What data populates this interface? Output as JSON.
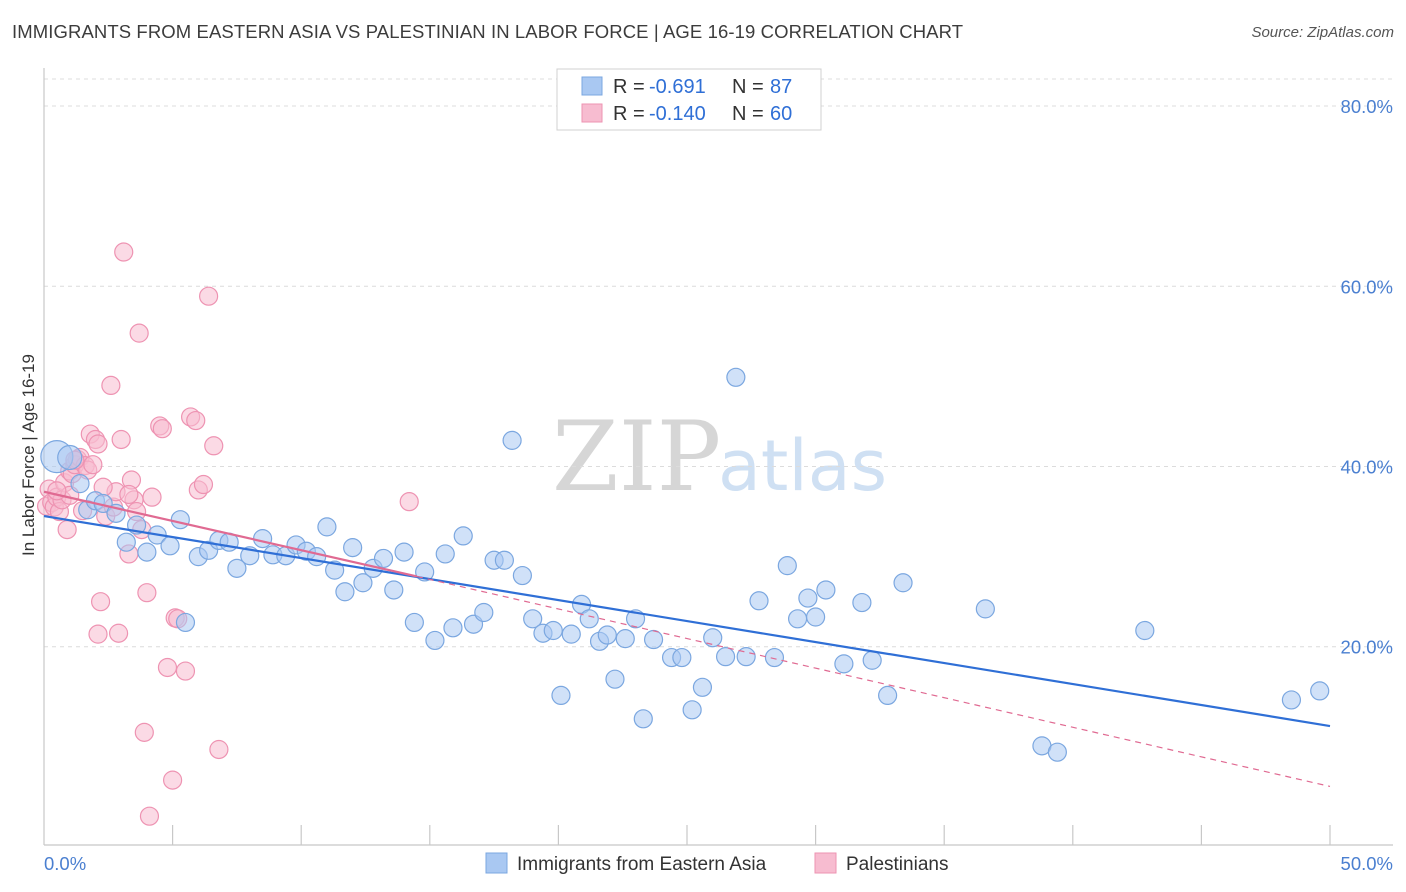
{
  "title": "IMMIGRANTS FROM EASTERN ASIA VS PALESTINIAN IN LABOR FORCE | AGE 16-19 CORRELATION CHART",
  "source": "Source: ZipAtlas.com",
  "watermark": {
    "zip": "ZIP",
    "atlas": "atlas"
  },
  "colors": {
    "blue_fill": "#a9c8f2",
    "blue_stroke": "#7ba7e0",
    "blue_line": "#2f6fd6",
    "pink_fill": "#f7bcd0",
    "pink_stroke": "#ee93b2",
    "pink_line": "#e06a92",
    "grid": "#dcdcdc",
    "tick_text": "#4a7fd0"
  },
  "legend": {
    "rows": [
      {
        "r_label": "R = ",
        "r_value": "-0.691",
        "n_label": "N = ",
        "n_value": "87"
      },
      {
        "r_label": "R = ",
        "r_value": "-0.140",
        "n_label": "N = ",
        "n_value": "60"
      }
    ]
  },
  "chart_data": {
    "type": "scatter",
    "title": "IMMIGRANTS FROM EASTERN ASIA VS PALESTINIAN IN LABOR FORCE | AGE 16-19 CORRELATION CHART",
    "xlabel": "",
    "ylabel": "In Labor Force | Age 16-19",
    "xlim": [
      0,
      50
    ],
    "ylim": [
      -2,
      84
    ],
    "x_tick_labels": [
      "0.0%",
      "50.0%"
    ],
    "y_ticks": [
      20,
      40,
      60,
      80
    ],
    "y_tick_labels": [
      "20.0%",
      "40.0%",
      "60.0%",
      "80.0%"
    ],
    "grid": true,
    "series": [
      {
        "name": "Immigrants from Eastern Asia",
        "r": -0.691,
        "n": 87,
        "trend": {
          "x0": 0,
          "y0": 34.5,
          "x1": 50,
          "y1": 11.2
        },
        "points": [
          [
            0.5,
            41.1
          ],
          [
            1.0,
            41.0
          ],
          [
            1.4,
            38.1
          ],
          [
            1.7,
            35.2
          ],
          [
            2.0,
            36.2
          ],
          [
            2.3,
            35.9
          ],
          [
            2.8,
            34.8
          ],
          [
            3.2,
            31.6
          ],
          [
            3.6,
            33.5
          ],
          [
            4.0,
            30.5
          ],
          [
            4.4,
            32.4
          ],
          [
            4.9,
            31.2
          ],
          [
            5.3,
            34.1
          ],
          [
            5.5,
            22.7
          ],
          [
            6.0,
            30.0
          ],
          [
            6.4,
            30.7
          ],
          [
            6.8,
            31.8
          ],
          [
            7.2,
            31.6
          ],
          [
            7.5,
            28.7
          ],
          [
            8.0,
            30.1
          ],
          [
            8.5,
            32.0
          ],
          [
            8.9,
            30.2
          ],
          [
            9.4,
            30.1
          ],
          [
            9.8,
            31.3
          ],
          [
            10.2,
            30.6
          ],
          [
            10.6,
            30.0
          ],
          [
            11.0,
            33.3
          ],
          [
            11.3,
            28.5
          ],
          [
            11.7,
            26.1
          ],
          [
            12.0,
            31.0
          ],
          [
            12.4,
            27.1
          ],
          [
            12.8,
            28.7
          ],
          [
            13.2,
            29.8
          ],
          [
            13.6,
            26.3
          ],
          [
            14.0,
            30.5
          ],
          [
            14.4,
            22.7
          ],
          [
            14.8,
            28.3
          ],
          [
            15.2,
            20.7
          ],
          [
            15.6,
            30.3
          ],
          [
            15.9,
            22.1
          ],
          [
            16.3,
            32.3
          ],
          [
            16.7,
            22.5
          ],
          [
            17.1,
            23.8
          ],
          [
            17.5,
            29.6
          ],
          [
            17.9,
            29.6
          ],
          [
            18.2,
            42.9
          ],
          [
            18.6,
            27.9
          ],
          [
            19.0,
            23.1
          ],
          [
            19.4,
            21.5
          ],
          [
            19.8,
            21.8
          ],
          [
            20.1,
            14.6
          ],
          [
            20.5,
            21.4
          ],
          [
            20.9,
            24.7
          ],
          [
            21.2,
            23.1
          ],
          [
            21.6,
            20.6
          ],
          [
            21.9,
            21.3
          ],
          [
            22.2,
            16.4
          ],
          [
            22.6,
            20.9
          ],
          [
            23.0,
            23.1
          ],
          [
            23.3,
            12.0
          ],
          [
            23.7,
            20.8
          ],
          [
            24.4,
            18.8
          ],
          [
            24.8,
            18.8
          ],
          [
            25.2,
            13.0
          ],
          [
            25.6,
            15.5
          ],
          [
            26.0,
            21.0
          ],
          [
            26.5,
            18.9
          ],
          [
            26.9,
            49.9
          ],
          [
            27.3,
            18.9
          ],
          [
            27.8,
            25.1
          ],
          [
            28.4,
            18.8
          ],
          [
            28.9,
            29.0
          ],
          [
            29.3,
            23.1
          ],
          [
            29.7,
            25.4
          ],
          [
            30.0,
            23.3
          ],
          [
            30.4,
            26.3
          ],
          [
            31.1,
            18.1
          ],
          [
            31.8,
            24.9
          ],
          [
            32.2,
            18.5
          ],
          [
            32.8,
            14.6
          ],
          [
            33.4,
            27.1
          ],
          [
            36.6,
            24.2
          ],
          [
            38.8,
            9.0
          ],
          [
            39.4,
            8.3
          ],
          [
            42.8,
            21.8
          ],
          [
            48.5,
            14.1
          ],
          [
            49.6,
            15.1
          ]
        ]
      },
      {
        "name": "Palestinians",
        "r": -0.14,
        "n": 60,
        "trend_solid": {
          "x0": 0,
          "y0": 37.2,
          "x1": 14.5,
          "y1": 27.8
        },
        "trend_dashed": {
          "x0": 14.5,
          "y0": 27.8,
          "x1": 50,
          "y1": 4.5
        },
        "points": [
          [
            0.1,
            35.6
          ],
          [
            0.2,
            37.5
          ],
          [
            0.3,
            36.0
          ],
          [
            0.4,
            35.5
          ],
          [
            0.5,
            36.6
          ],
          [
            0.6,
            35.0
          ],
          [
            0.7,
            36.3
          ],
          [
            0.8,
            38.2
          ],
          [
            0.9,
            33.0
          ],
          [
            1.0,
            39.5
          ],
          [
            1.1,
            39.2
          ],
          [
            1.2,
            40.2
          ],
          [
            1.3,
            40.8
          ],
          [
            1.4,
            41.0
          ],
          [
            1.5,
            35.1
          ],
          [
            1.6,
            40.1
          ],
          [
            1.7,
            39.6
          ],
          [
            1.8,
            43.6
          ],
          [
            1.9,
            40.2
          ],
          [
            2.0,
            43.0
          ],
          [
            2.1,
            42.5
          ],
          [
            2.2,
            25.0
          ],
          [
            2.4,
            34.5
          ],
          [
            2.6,
            49.0
          ],
          [
            2.7,
            35.5
          ],
          [
            2.8,
            37.2
          ],
          [
            2.9,
            21.5
          ],
          [
            3.0,
            43.0
          ],
          [
            3.1,
            63.8
          ],
          [
            3.3,
            30.3
          ],
          [
            3.4,
            38.5
          ],
          [
            3.5,
            36.3
          ],
          [
            3.6,
            35.0
          ],
          [
            3.7,
            54.8
          ],
          [
            3.8,
            33.0
          ],
          [
            3.9,
            10.5
          ],
          [
            4.0,
            26.0
          ],
          [
            4.1,
            1.2
          ],
          [
            4.2,
            36.6
          ],
          [
            4.5,
            44.5
          ],
          [
            4.6,
            44.2
          ],
          [
            4.8,
            17.7
          ],
          [
            5.0,
            5.2
          ],
          [
            5.1,
            23.2
          ],
          [
            5.2,
            23.1
          ],
          [
            5.5,
            17.3
          ],
          [
            5.7,
            45.5
          ],
          [
            5.9,
            45.1
          ],
          [
            6.0,
            37.4
          ],
          [
            6.2,
            38.0
          ],
          [
            6.4,
            58.9
          ],
          [
            6.6,
            42.3
          ],
          [
            6.8,
            8.6
          ],
          [
            14.2,
            36.1
          ],
          [
            1.0,
            36.8
          ],
          [
            2.3,
            37.7
          ],
          [
            0.5,
            37.3
          ],
          [
            1.2,
            40.7
          ],
          [
            2.1,
            21.4
          ],
          [
            3.3,
            36.9
          ]
        ]
      }
    ]
  },
  "bottom_legend": [
    {
      "label": "Immigrants from Eastern Asia"
    },
    {
      "label": "Palestinians"
    }
  ]
}
